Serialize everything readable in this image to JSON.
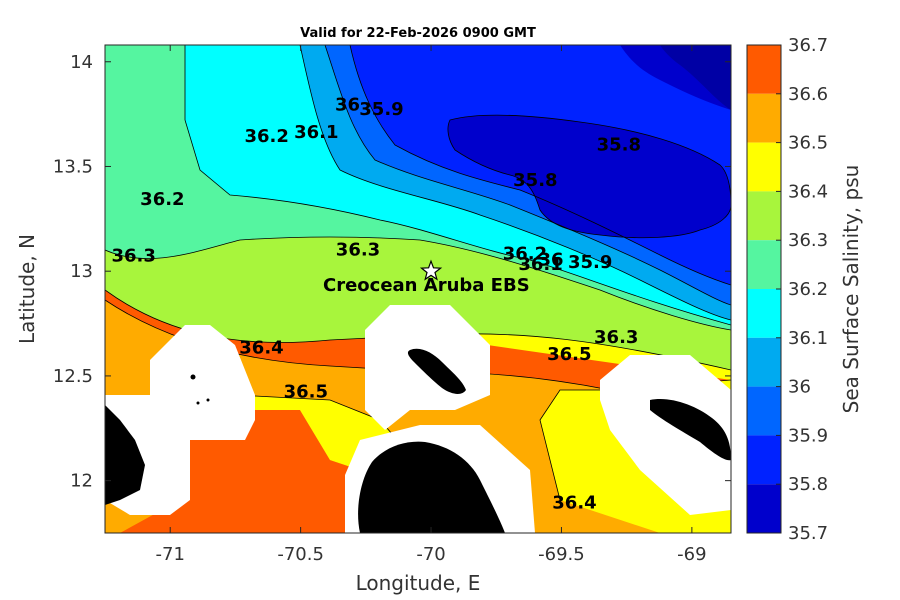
{
  "chart_data": {
    "type": "heatmap",
    "title": "Valid for 22-Feb-2026 0900 GMT",
    "xlabel": "Longitude, E",
    "ylabel": "Latitude, N",
    "colorbar_label": "Sea Surface Salinity, psu",
    "xlim": [
      -71.25,
      -68.85
    ],
    "ylim": [
      11.75,
      14.08
    ],
    "x_ticks": [
      "-71",
      "-70.5",
      "-70",
      "-69.5",
      "-69"
    ],
    "y_ticks": [
      "14",
      "13.5",
      "13",
      "12.5",
      "12"
    ],
    "colorbar_levels": [
      "36.7",
      "36.6",
      "36.5",
      "36.4",
      "36.3",
      "36.2",
      "36.1",
      "36",
      "35.9",
      "35.8",
      "35.7"
    ],
    "colorbar_colors": [
      "#ff5a00",
      "#ffab00",
      "#ffff00",
      "#a8f53c",
      "#55f5a0",
      "#00ffff",
      "#00aaf0",
      "#0066ff",
      "#0022ff",
      "#0000cc",
      "#0000a5"
    ],
    "land_color": "#000000",
    "mask_color": "#ffffff",
    "station": {
      "name": "Creocean Aruba EBS",
      "lon": -70.0,
      "lat": 13.0,
      "marker": "star"
    },
    "contour_labels": [
      {
        "text": "36.2",
        "lon": -71.03,
        "lat": 13.34
      },
      {
        "text": "36.3",
        "lon": -71.14,
        "lat": 13.07
      },
      {
        "text": "36.2",
        "lon": -70.63,
        "lat": 13.64
      },
      {
        "text": "36.1",
        "lon": -70.44,
        "lat": 13.66
      },
      {
        "text": "36",
        "lon": -70.32,
        "lat": 13.79
      },
      {
        "text": "35.9",
        "lon": -70.19,
        "lat": 13.77
      },
      {
        "text": "35.8",
        "lon": -69.28,
        "lat": 13.6
      },
      {
        "text": "35.8",
        "lon": -69.6,
        "lat": 13.43
      },
      {
        "text": "36.3",
        "lon": -70.28,
        "lat": 13.1
      },
      {
        "text": "36.2",
        "lon": -69.64,
        "lat": 13.08
      },
      {
        "text": "36.1",
        "lon": -69.58,
        "lat": 13.03
      },
      {
        "text": "36",
        "lon": -69.54,
        "lat": 13.05
      },
      {
        "text": "35.9",
        "lon": -69.39,
        "lat": 13.04
      },
      {
        "text": "36.4",
        "lon": -70.65,
        "lat": 12.63
      },
      {
        "text": "36.5",
        "lon": -70.48,
        "lat": 12.42
      },
      {
        "text": "36.5",
        "lon": -69.47,
        "lat": 12.6
      },
      {
        "text": "36.3",
        "lon": -69.29,
        "lat": 12.68
      },
      {
        "text": "36.4",
        "lon": -69.45,
        "lat": 11.89
      }
    ]
  }
}
